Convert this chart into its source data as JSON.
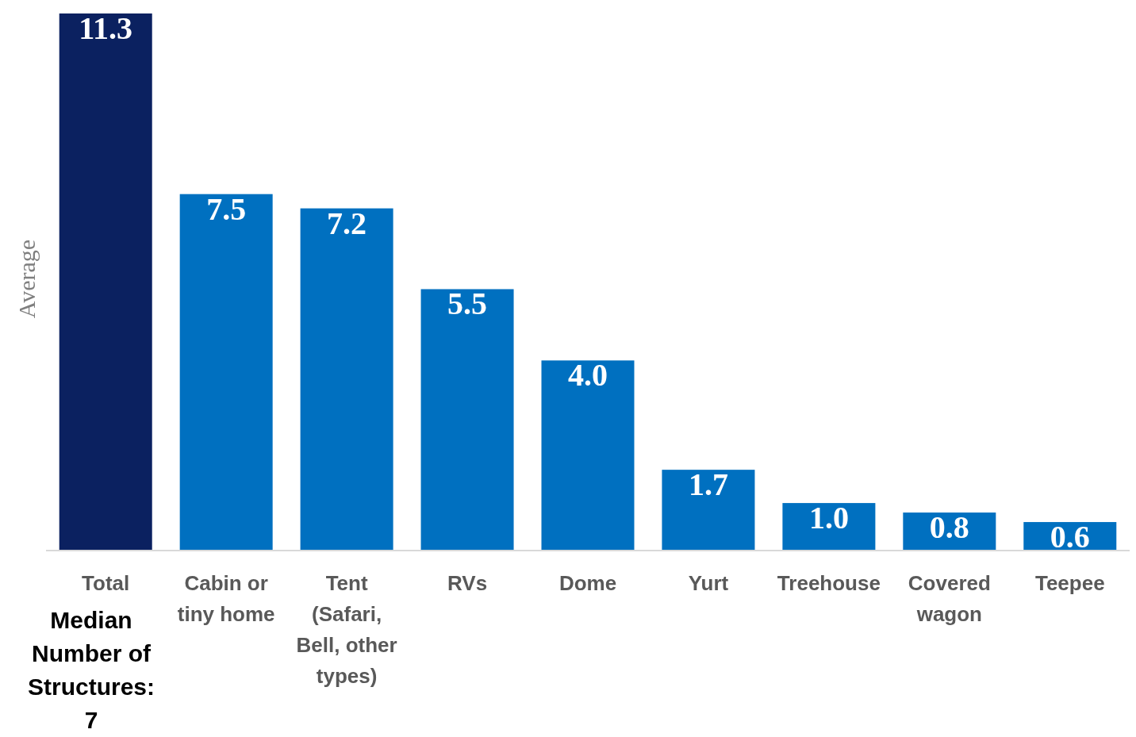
{
  "chart_data": {
    "type": "bar",
    "ylabel": "Average",
    "categories": [
      "Total",
      "Cabin or tiny home",
      "Tent (Safari, Bell, other types)",
      "RVs",
      "Dome",
      "Yurt",
      "Treehouse",
      "Covered wagon",
      "Teepee"
    ],
    "values": [
      11.3,
      7.5,
      7.2,
      5.5,
      4.0,
      1.7,
      1.0,
      0.8,
      0.6
    ],
    "colors": [
      "#0b2160",
      "#0070c0",
      "#0070c0",
      "#0070c0",
      "#0070c0",
      "#0070c0",
      "#0070c0",
      "#0070c0",
      "#0070c0"
    ],
    "value_labels": [
      "11.3",
      "7.5",
      "7.2",
      "5.5",
      "4.0",
      "1.7",
      "1.0",
      "0.8",
      "0.6"
    ],
    "annotations": [
      "Median Number of Structures: 7"
    ]
  }
}
